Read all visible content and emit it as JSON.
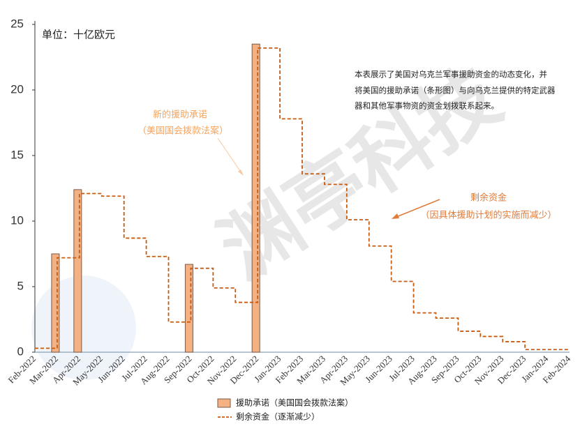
{
  "chart_data": {
    "type": "bar-step",
    "unit_label": "单位：十亿欧元",
    "watermark": "渊亭科技",
    "description": [
      "本表展示了美国对乌克兰军事援助资金的动态变化，并",
      "将美国的援助承诺（条形图）与向乌克兰提供的特定武器",
      "器和其他军事物资的资金划拨联系起来。"
    ],
    "annotations": [
      {
        "lines": [
          "新的援助承诺",
          "（美国国会拨款法案）"
        ],
        "color": "#f4a460"
      },
      {
        "lines": [
          "剩余资金",
          "（因具体援助计划的实施而减少）"
        ],
        "color": "#e07b39"
      }
    ],
    "categories": [
      "Feb-2022",
      "Mar-2022",
      "Apr-2022",
      "May-2022",
      "Jun-2022",
      "Jul-2022",
      "Aug-2022",
      "Sep-2022",
      "Oct-2022",
      "Nov-2022",
      "Dec-2022",
      "Jan-2023",
      "Feb-2023",
      "Mar-2023",
      "Apr-2023",
      "May-2023",
      "Jun-2023",
      "Jul-2023",
      "Aug-2023",
      "Sep-2023",
      "Oct-2023",
      "Nov-2023",
      "Dec-2023",
      "Jan-2024",
      "Feb-2024"
    ],
    "series": [
      {
        "name": "援助承诺（美国国会拨款法案）",
        "kind": "bar",
        "color": "#f4b183",
        "values": [
          null,
          7.5,
          12.4,
          null,
          null,
          null,
          null,
          6.7,
          null,
          null,
          23.5,
          null,
          null,
          null,
          null,
          null,
          null,
          null,
          null,
          null,
          null,
          null,
          null,
          null,
          null
        ]
      },
      {
        "name": "剩余资金（逐渐减少）",
        "kind": "step",
        "color": "#c55a11",
        "values": [
          0.3,
          7.2,
          12.1,
          11.9,
          8.7,
          7.3,
          2.3,
          6.4,
          4.9,
          3.8,
          23.2,
          17.8,
          13.6,
          12.8,
          10.1,
          8.1,
          5.4,
          3.0,
          2.6,
          1.6,
          1.2,
          0.8,
          0.2,
          0.2,
          0.2
        ]
      }
    ],
    "ylim": [
      0,
      25
    ],
    "yticks": [
      0,
      5,
      10,
      15,
      20,
      25
    ],
    "grid": false
  }
}
